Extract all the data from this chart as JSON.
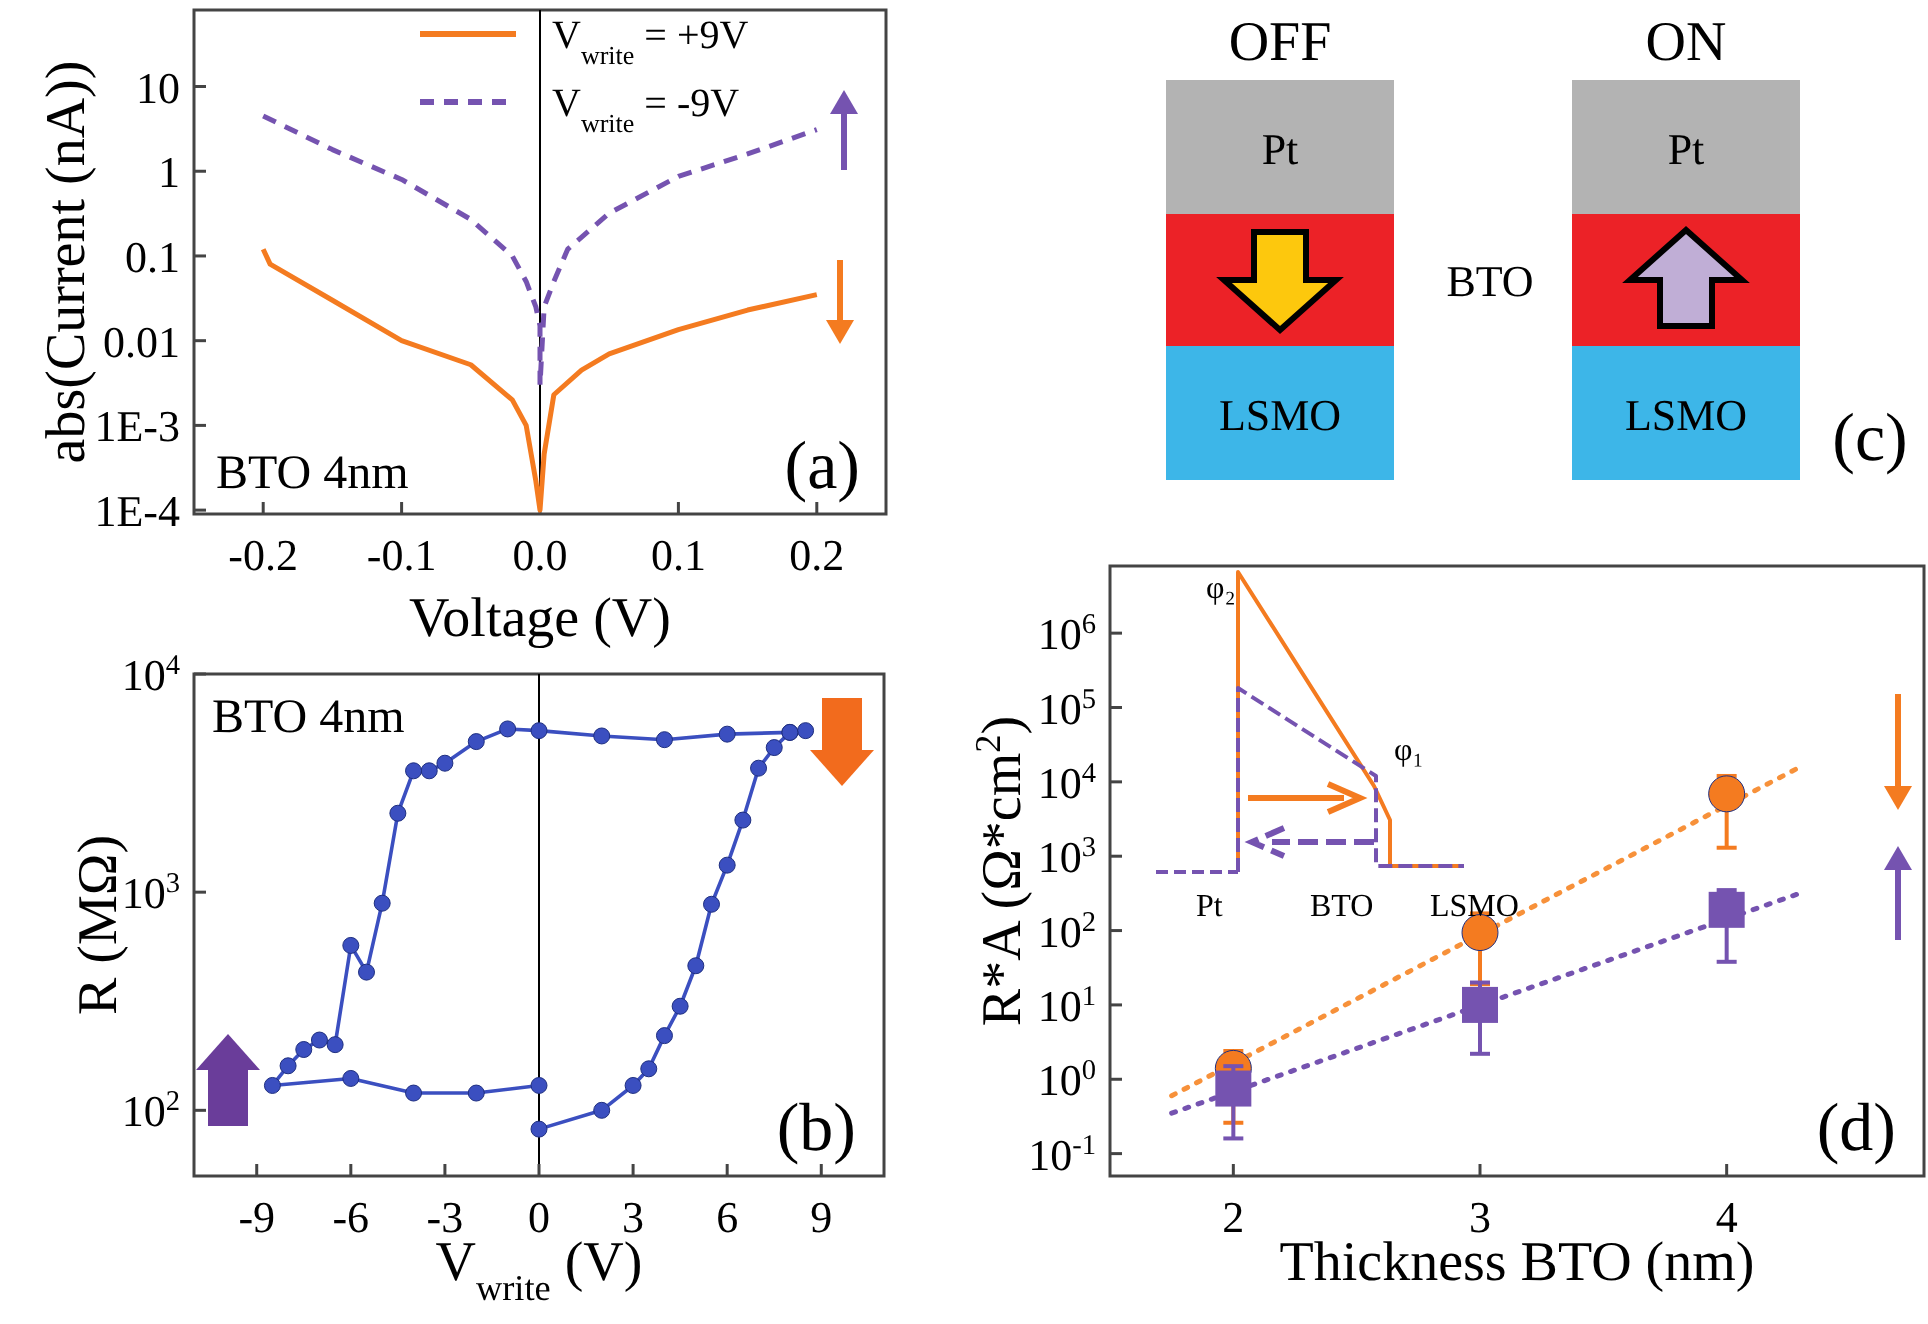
{
  "chart_data": [
    {
      "type": "line",
      "xlabel": "Voltage (V)",
      "ylabel": "abs(Current (nA))",
      "log": "y",
      "legend": "top",
      "xlim": [
        -0.25,
        0.25
      ],
      "xticks": [
        {
          "value": -0.2,
          "label": "-0.2"
        },
        {
          "value": -0.1,
          "label": "-0.1"
        },
        {
          "value": 0,
          "label": "0.0"
        },
        {
          "value": 0.1,
          "label": "0.1"
        },
        {
          "value": 0.2,
          "label": "0.2"
        }
      ],
      "ylim": [
        9e-05,
        80
      ],
      "yticks": [
        {
          "value": 0.0001,
          "label": "1E-4"
        },
        {
          "value": 0.001,
          "label": "1E-3"
        },
        0.01,
        0.1,
        1,
        10
      ],
      "ref_lines": [
        {
          "axis": "x",
          "value": 0,
          "color": "#000000"
        }
      ],
      "annotations": [
        "BTO 4nm",
        "(a)"
      ],
      "series": [
        {
          "name": "V$_{write}$ = +9V",
          "color": "#f47b20",
          "line_style": "solid",
          "x": [
            -0.2,
            -0.195,
            -0.15,
            -0.1,
            -0.05,
            -0.02,
            -0.01,
            -0.003,
            0,
            0.003,
            0.01,
            0.03,
            0.05,
            0.1,
            0.15,
            0.2
          ],
          "values": [
            0.12,
            0.08,
            0.03,
            0.01,
            0.0052,
            0.002,
            0.001,
            0.00022,
            0.0001,
            0.00046,
            0.0023,
            0.0045,
            0.007,
            0.0135,
            0.023,
            0.035
          ]
        },
        {
          "name": "V$_{write}$ = -9V",
          "color": "#7553b0",
          "line_style": "dashed",
          "x": [
            -0.2,
            -0.15,
            -0.1,
            -0.05,
            -0.02,
            -0.01,
            -0.003,
            0,
            0,
            0.003,
            0.01,
            0.02,
            0.05,
            0.1,
            0.15,
            0.2
          ],
          "values": [
            4.5,
            1.8,
            0.8,
            0.27,
            0.1,
            0.05,
            0.025,
            0.015,
            0.003,
            0.025,
            0.05,
            0.12,
            0.32,
            0.87,
            1.6,
            3.1
          ]
        }
      ]
    },
    {
      "type": "line",
      "xlabel": "V$_{write}$ (V)",
      "ylabel": "R (MΩ)",
      "log": "y",
      "marker": "circle",
      "xlim": [
        -11,
        11
      ],
      "xticks": [
        -9,
        -6,
        -3,
        0,
        3,
        6,
        9
      ],
      "ylim": [
        50,
        10000
      ],
      "yticks": [
        {
          "value": 100,
          "label": "10$^{2}$"
        },
        {
          "value": 1000,
          "label": "10$^{3}$"
        },
        {
          "value": 10000,
          "label": "10$^{4}$"
        }
      ],
      "ref_lines": [
        {
          "axis": "x",
          "value": 0,
          "color": "#000000"
        }
      ],
      "annotations": [
        "BTO 4nm",
        "(b)"
      ],
      "series": [
        {
          "type": "line",
          "color": "#3b4fc0",
          "x": [
            0,
            2,
            3,
            3.5,
            4,
            4.5,
            5,
            5.5,
            6,
            6.5,
            7,
            7.5,
            8,
            8.5,
            8,
            6,
            4,
            2,
            0,
            -1,
            -2,
            -3,
            -3.5,
            -4,
            -4.5,
            -5,
            -5.5,
            -6,
            -6.5,
            -7,
            -7.5,
            -8,
            -8.5,
            -6,
            -4,
            -2,
            0
          ],
          "values": [
            82,
            100,
            130,
            155,
            220,
            300,
            460,
            880,
            1330,
            2140,
            3700,
            4600,
            5400,
            5500,
            5400,
            5300,
            5000,
            5200,
            5500,
            5600,
            4900,
            3900,
            3600,
            3600,
            2300,
            890,
            430,
            570,
            200,
            210,
            190,
            160,
            130,
            140,
            120,
            120,
            130
          ]
        }
      ]
    },
    {
      "type": "other",
      "annotations": [
        "OFF",
        "ON",
        "Pt",
        "Pt",
        "BTO",
        "LSMO",
        "LSMO",
        "(c)"
      ]
    },
    {
      "type": "scatter",
      "xlabel": "Thickness BTO (nm)",
      "ylabel": "R*A (Ω*cm$^{2}$)",
      "log": "y",
      "xlim": [
        1.5,
        4.8
      ],
      "xticks": [
        2,
        3,
        4
      ],
      "ylim": [
        0.05,
        8000000
      ],
      "yticks": [
        {
          "value": 0.1,
          "label": "10$^{-1}$"
        },
        {
          "value": 1,
          "label": "10$^{0}$"
        },
        {
          "value": 10,
          "label": "10$^{1}$"
        },
        {
          "value": 100,
          "label": "10$^{2}$"
        },
        {
          "value": 1000,
          "label": "10$^{3}$"
        },
        {
          "value": 10000,
          "label": "10$^{4}$"
        },
        {
          "value": 100000,
          "label": "10$^{5}$"
        },
        {
          "value": 1000000,
          "label": "10$^{6}$"
        }
      ],
      "annotations": [
        "φ₂",
        "φ₁",
        "Pt",
        "BTO",
        "LSMO",
        "(d)"
      ],
      "series": [
        {
          "type": "line",
          "color": "#f7913a",
          "line_style": "dotted",
          "x": [
            1.75,
            4.3
          ],
          "values": [
            0.6,
            16000
          ]
        },
        {
          "type": "line",
          "color": "#7553b0",
          "line_style": "dotted",
          "x": [
            1.75,
            4.3
          ],
          "values": [
            0.35,
            320
          ]
        },
        {
          "color": "#f47b20",
          "marker": "circle",
          "x": [
            2,
            3,
            4
          ],
          "values": [
            1.4,
            94,
            6900
          ],
          "errors": [
            [
              0.26,
              2.4
            ],
            [
              19,
              170
            ],
            [
              1300,
              12000
            ]
          ]
        },
        {
          "color": "#7553b0",
          "marker": "square",
          "x": [
            2,
            3,
            4
          ],
          "values": [
            0.75,
            10,
            190
          ],
          "errors": [
            [
              0.16,
              1.5
            ],
            [
              2.2,
              20
            ],
            [
              38,
              350
            ]
          ]
        }
      ]
    }
  ]
}
